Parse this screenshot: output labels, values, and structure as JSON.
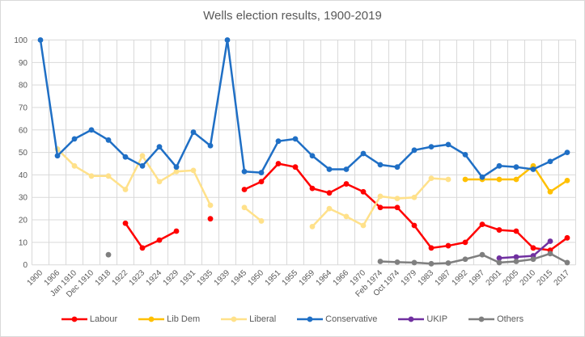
{
  "title": "Wells election results, 1900-2019",
  "chart_data": {
    "type": "line",
    "title": "Wells election results, 1900-2019",
    "xlabel": "",
    "ylabel": "",
    "ylim": [
      0,
      100
    ],
    "y_ticks": [
      0,
      10,
      20,
      30,
      40,
      50,
      60,
      70,
      80,
      90,
      100
    ],
    "grid": true,
    "legend_position": "bottom",
    "marker": "circle",
    "categories": [
      "1900",
      "1906",
      "Jan 1910",
      "Dec 1910",
      "1918",
      "1922",
      "1923",
      "1924",
      "1929",
      "1931",
      "1935",
      "1939",
      "1945",
      "1950",
      "1951",
      "1955",
      "1959",
      "1964",
      "1966",
      "1970",
      "Feb 1974",
      "Oct 1974",
      "1979",
      "1983",
      "1987",
      "1992",
      "1997",
      "2001",
      "2005",
      "2010",
      "2015",
      "2017"
    ],
    "series": [
      {
        "name": "Labour",
        "color": "#FF0000",
        "values": [
          null,
          null,
          null,
          null,
          null,
          18.5,
          7.5,
          11,
          15,
          null,
          20.5,
          null,
          33.5,
          37,
          45,
          43.5,
          34,
          32,
          36,
          32.5,
          25.5,
          25.5,
          17.5,
          7.5,
          8.5,
          10,
          18,
          15.5,
          15,
          7.5,
          6.5,
          12
        ]
      },
      {
        "name": "Lib Dem",
        "color": "#FFC000",
        "values": [
          null,
          null,
          null,
          null,
          null,
          null,
          null,
          null,
          null,
          null,
          null,
          null,
          null,
          null,
          null,
          null,
          null,
          null,
          null,
          null,
          null,
          null,
          null,
          null,
          null,
          38,
          38,
          38,
          38,
          44,
          32.5,
          37.5
        ]
      },
      {
        "name": "Liberal",
        "color": "#FFE18A",
        "values": [
          null,
          51.5,
          44,
          39.5,
          39.5,
          33.5,
          48.5,
          37,
          41.5,
          42,
          26.5,
          null,
          25.5,
          19.5,
          null,
          null,
          17,
          25,
          21.5,
          17.5,
          30.5,
          29.5,
          30,
          38.5,
          38,
          null,
          null,
          null,
          null,
          null,
          null,
          null
        ]
      },
      {
        "name": "Conservative",
        "color": "#1F6FC5",
        "values": [
          100,
          48.5,
          56,
          60,
          55.5,
          48,
          44,
          52.5,
          43.5,
          59,
          53,
          100,
          41.5,
          41,
          55,
          56,
          48.5,
          42.5,
          42.5,
          49.5,
          44.5,
          43.5,
          51,
          52.5,
          53.5,
          49,
          39,
          44,
          43.5,
          42.5,
          46,
          50
        ]
      },
      {
        "name": "UKIP",
        "color": "#7030A0",
        "values": [
          null,
          null,
          null,
          null,
          null,
          null,
          null,
          null,
          null,
          null,
          null,
          null,
          null,
          null,
          null,
          null,
          null,
          null,
          null,
          null,
          null,
          null,
          null,
          null,
          null,
          null,
          null,
          3,
          3.5,
          4,
          10.5,
          null
        ]
      },
      {
        "name": "Others",
        "color": "#7F7F7F",
        "values": [
          null,
          null,
          null,
          null,
          4.5,
          null,
          null,
          null,
          null,
          null,
          null,
          null,
          null,
          null,
          null,
          null,
          null,
          null,
          null,
          null,
          1.5,
          1.2,
          1,
          0.5,
          0.8,
          2.5,
          4.5,
          1,
          1.5,
          2.5,
          5,
          1
        ]
      }
    ]
  },
  "colors": {
    "gridline": "#D9D9D9",
    "text": "#595959",
    "background": "#FFFFFF"
  }
}
